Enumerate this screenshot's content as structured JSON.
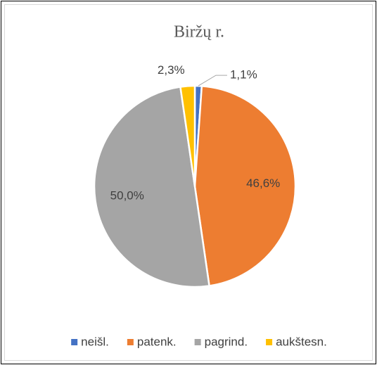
{
  "chart_data": {
    "type": "pie",
    "title": "Biržų r.",
    "categories": [
      "neišl.",
      "patenk.",
      "pagrind.",
      "aukštesn."
    ],
    "values": [
      1.1,
      46.6,
      50.0,
      2.3
    ],
    "value_labels": [
      "1,1%",
      "46,6%",
      "50,0%",
      "2,3%"
    ],
    "colors": [
      "#4472c4",
      "#ed7d31",
      "#a5a5a5",
      "#ffc000"
    ],
    "legend": "bottom"
  }
}
